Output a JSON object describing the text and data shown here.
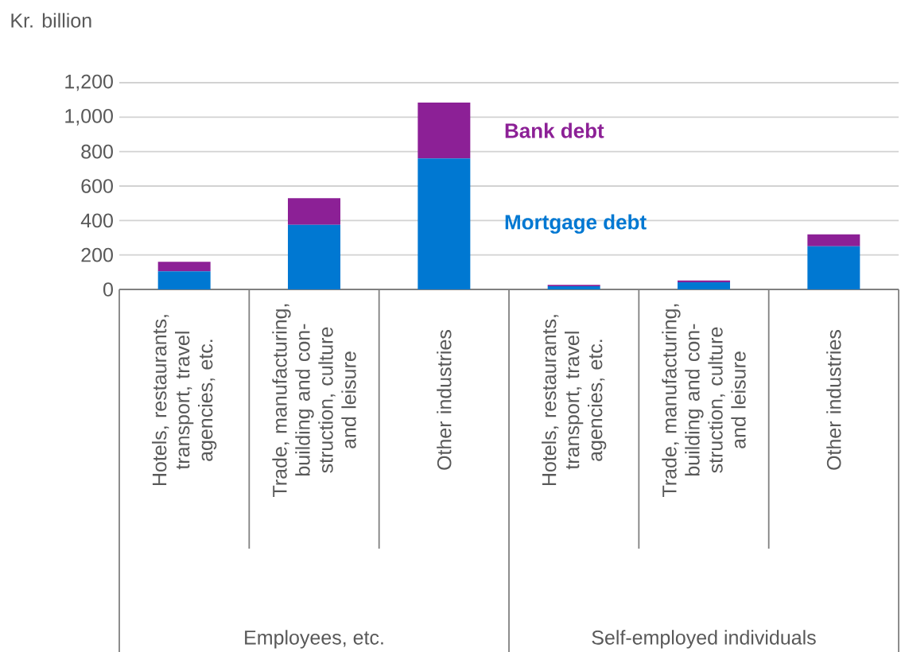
{
  "chart_data": {
    "type": "bar",
    "stacked": true,
    "ylabel": "Kr. billion",
    "categories": [
      "Hotels, restaurants, transport, travel agencies, etc.",
      "Trade, manufacturing, building and con-struction, culture and leisure",
      "Other industries",
      "Hotels, restaurants, transport, travel agencies, etc.",
      "Trade, manufacturing, building and con-struction, culture and leisure",
      "Other industries"
    ],
    "series": [
      {
        "name": "Mortgage debt",
        "color": "#0078d2",
        "values": [
          105,
          375,
          760,
          18,
          42,
          250
        ]
      },
      {
        "name": "Bank debt",
        "color": "#8c2096",
        "values": [
          55,
          155,
          325,
          8,
          10,
          70
        ]
      }
    ],
    "ylim": [
      0,
      1200
    ],
    "yticks": [
      0,
      200,
      400,
      600,
      800,
      {
        "value": 1000,
        "label": "1,000"
      },
      {
        "value": 1200,
        "label": "1,200"
      }
    ],
    "grid": "y",
    "annotations": [
      "Employees, etc.",
      "Self-employed individuals"
    ]
  }
}
